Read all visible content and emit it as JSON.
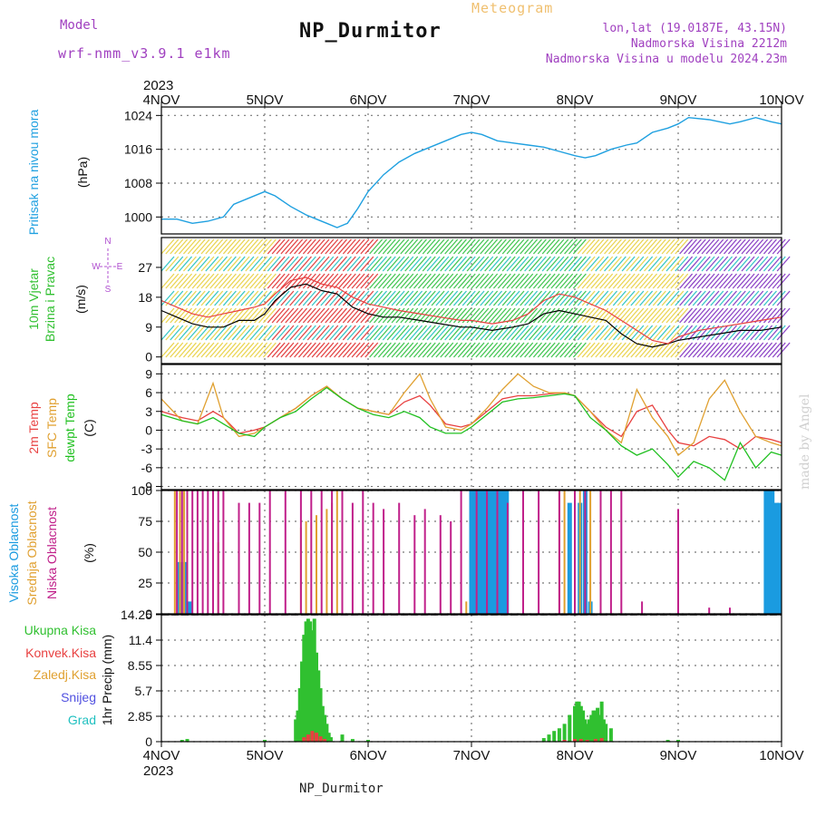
{
  "header": {
    "station": "NP_Durmitor",
    "meteogram_label": "Meteogram",
    "model_label": "Model",
    "model_name": "wrf-nmm_v3.9.1 e1km",
    "lonlat": "lon,lat (19.0187E, 43.15N)",
    "altitude": "Nadmorska Visina 2212m",
    "model_altitude": "Nadmorska Visina u modelu 2024.23m",
    "year": "2023",
    "watermark": "made by Angel"
  },
  "time_axis": {
    "labels": [
      "4NOV",
      "5NOV",
      "6NOV",
      "7NOV",
      "8NOV",
      "9NOV",
      "10NOV"
    ],
    "year": "2023",
    "footer": "NP_Durmitor"
  },
  "colors": {
    "pressure": "#1fa0e0",
    "temp2m": "#e84040",
    "sfctemp": "#e0a030",
    "dewpt": "#20c020",
    "high_cloud": "#1a9be0",
    "mid_cloud": "#e0a030",
    "low_cloud": "#c0208a",
    "rain_total": "#30c030",
    "rain_conv": "#e84040",
    "snow": "#5050e0",
    "hail": "#20c0c0",
    "wind_speed": "#000000",
    "wind_gust": "#e84040",
    "wind_dir_text": "#b050d0"
  },
  "chart_data": [
    {
      "type": "line",
      "panel": "pressure",
      "ylabel_main": "Pritisak na nivou mora",
      "ylabel_unit": "(hPa)",
      "ylim": [
        996,
        1026
      ],
      "yticks": [
        1000,
        1008,
        1016,
        1024
      ],
      "grid": true,
      "x": [
        0,
        0.15,
        0.3,
        0.45,
        0.6,
        0.7,
        0.85,
        1.0,
        1.1,
        1.25,
        1.4,
        1.5,
        1.6,
        1.7,
        1.8,
        1.9,
        2.0,
        2.15,
        2.3,
        2.45,
        2.6,
        2.75,
        2.9,
        3.0,
        3.1,
        3.25,
        3.4,
        3.55,
        3.7,
        3.85,
        4.0,
        4.1,
        4.2,
        4.35,
        4.5,
        4.6,
        4.75,
        4.9,
        5.0,
        5.1,
        5.3,
        5.5,
        5.6,
        5.75,
        5.9,
        6.0
      ],
      "series": [
        {
          "values": [
            999.5,
            999.5,
            998.5,
            999.0,
            1000.0,
            1003.0,
            1004.5,
            1006.0,
            1005.0,
            1002.5,
            1000.5,
            999.5,
            998.5,
            997.5,
            998.5,
            1002.0,
            1006.0,
            1010.0,
            1013.0,
            1015.0,
            1016.5,
            1018.0,
            1019.5,
            1020.0,
            1019.5,
            1018.0,
            1017.5,
            1017.0,
            1016.5,
            1015.5,
            1014.5,
            1014.0,
            1014.5,
            1016.0,
            1017.0,
            1017.5,
            1020.0,
            1021.0,
            1022.0,
            1023.5,
            1023.0,
            1022.0,
            1022.5,
            1023.5,
            1022.5,
            1022.0
          ]
        }
      ]
    },
    {
      "type": "line",
      "panel": "wind",
      "ylabel_main": "10m Vjetar",
      "ylabel_sub": "Brzina i Pravac",
      "ylabel_unit": "(m/s)",
      "ylim": [
        -2,
        36
      ],
      "yticks": [
        0,
        9,
        18,
        27
      ],
      "grid": false,
      "compass": [
        "N",
        "E",
        "S",
        "W"
      ],
      "x": [
        0,
        0.15,
        0.3,
        0.45,
        0.6,
        0.75,
        0.9,
        1.0,
        1.1,
        1.25,
        1.4,
        1.55,
        1.7,
        1.85,
        2.0,
        2.15,
        2.3,
        2.5,
        2.7,
        2.9,
        3.0,
        3.2,
        3.4,
        3.55,
        3.7,
        3.85,
        4.0,
        4.15,
        4.3,
        4.45,
        4.6,
        4.75,
        4.9,
        5.0,
        5.2,
        5.4,
        5.6,
        5.8,
        6.0
      ],
      "series": [
        {
          "name": "speed",
          "values": [
            14,
            12,
            10,
            9,
            9,
            11,
            11,
            13,
            17,
            21,
            22,
            20,
            19,
            15,
            13,
            12,
            12,
            11,
            10,
            9,
            9,
            8,
            9,
            10,
            13,
            14,
            13,
            12,
            11,
            7,
            4,
            3,
            4,
            5,
            6,
            7,
            8,
            8,
            9
          ]
        },
        {
          "name": "gust",
          "values": [
            17,
            15,
            13,
            12,
            13,
            14,
            15,
            16,
            19,
            23,
            24,
            22,
            21,
            18,
            16,
            15,
            14,
            13,
            12,
            11,
            11,
            10,
            11,
            13,
            17,
            19,
            18,
            16,
            14,
            11,
            8,
            5,
            4,
            6,
            8,
            9,
            10,
            11,
            12
          ]
        }
      ],
      "barb_colors_by_day": [
        "#e8d040",
        "#e03030",
        "#30c040",
        "#30c040",
        "#e8d040",
        "#8030c0"
      ]
    },
    {
      "type": "line",
      "panel": "temperature",
      "ylabel_main": "2m Temp",
      "ylabel_sub": "SFC Temp",
      "ylabel_sub2": "dewpt Temp",
      "ylabel_unit": "(C)",
      "ylim": [
        -9.5,
        10.5
      ],
      "yticks": [
        -9,
        -6,
        -3,
        0,
        3,
        6,
        9
      ],
      "grid": true,
      "x": [
        0,
        0.2,
        0.35,
        0.5,
        0.6,
        0.75,
        0.9,
        1.0,
        1.15,
        1.3,
        1.45,
        1.6,
        1.75,
        1.9,
        2.05,
        2.2,
        2.35,
        2.5,
        2.6,
        2.75,
        2.9,
        3.0,
        3.15,
        3.3,
        3.45,
        3.6,
        3.75,
        3.9,
        4.0,
        4.15,
        4.3,
        4.45,
        4.6,
        4.75,
        4.9,
        5.0,
        5.15,
        5.3,
        5.45,
        5.6,
        5.75,
        5.9,
        6.0
      ],
      "series": [
        {
          "name": "2m Temp",
          "values": [
            3,
            2,
            1.5,
            3,
            2,
            -0.5,
            0,
            0.5,
            2,
            3.5,
            5.5,
            7,
            5,
            3.5,
            3,
            2.5,
            4.5,
            5.5,
            4,
            1,
            0.5,
            1,
            3,
            5,
            5.5,
            5.5,
            5.8,
            6,
            5.5,
            3,
            0.5,
            -1,
            3,
            4,
            0,
            -2,
            -2.5,
            -1,
            -1.5,
            -3,
            -1,
            -1.5,
            -2
          ]
        },
        {
          "name": "SFC Temp",
          "values": [
            5,
            1.5,
            1,
            7.5,
            2,
            -1,
            -0.5,
            0.5,
            2,
            3.5,
            5.5,
            7,
            5,
            3.5,
            3,
            2.5,
            6,
            9,
            5,
            0.5,
            0,
            1,
            3.5,
            6.5,
            9,
            7,
            6,
            6,
            5.5,
            3,
            0,
            -2,
            6.5,
            2,
            -1,
            -4,
            -2,
            5,
            8,
            3,
            -1,
            -2,
            -2.5
          ]
        },
        {
          "name": "dewpt Temp",
          "values": [
            2.5,
            1.5,
            1,
            2,
            1,
            -0.5,
            -1,
            0.5,
            2,
            3,
            5,
            6.8,
            5,
            3.5,
            2.5,
            2,
            3,
            2,
            0.5,
            -0.5,
            -0.5,
            0.5,
            2.5,
            4.5,
            5,
            5.2,
            5.5,
            5.8,
            5.5,
            2,
            0,
            -2.5,
            -4,
            -3,
            -5.5,
            -7.5,
            -5,
            -6,
            -8,
            -2,
            -6,
            -3.5,
            -4
          ]
        }
      ]
    },
    {
      "type": "bar",
      "panel": "cloud",
      "ylabel_main": "Visoka Oblacnost",
      "ylabel_sub": "Srednja Oblacnost",
      "ylabel_sub2": "Niska Oblacnost",
      "ylabel_unit": "(%)",
      "ylim": [
        0,
        100
      ],
      "yticks": [
        0,
        25,
        50,
        75,
        100
      ],
      "grid": true,
      "low": {
        "x": [
          0.15,
          0.2,
          0.25,
          0.3,
          0.35,
          0.4,
          0.45,
          0.5,
          0.55,
          0.6,
          0.75,
          0.85,
          0.95,
          1.05,
          1.2,
          1.35,
          1.45,
          1.55,
          1.65,
          1.75,
          1.85,
          1.95,
          2.05,
          2.15,
          2.3,
          2.45,
          2.55,
          2.7,
          2.8,
          2.9,
          3.05,
          3.15,
          3.25,
          3.35,
          3.5,
          3.65,
          3.85,
          4.0,
          4.1,
          4.25,
          4.35,
          4.45,
          4.65,
          5.0,
          5.3,
          5.5
        ],
        "values": [
          100,
          100,
          100,
          100,
          100,
          100,
          100,
          100,
          100,
          100,
          90,
          90,
          90,
          100,
          100,
          100,
          100,
          100,
          100,
          100,
          90,
          100,
          90,
          85,
          90,
          80,
          85,
          80,
          75,
          100,
          100,
          100,
          100,
          90,
          100,
          100,
          100,
          100,
          100,
          100,
          100,
          100,
          10,
          85,
          5,
          5
        ]
      },
      "mid": {
        "x": [
          0.13,
          0.18,
          0.22,
          0.5,
          0.55,
          1.35,
          1.4,
          1.5,
          1.6,
          1.65,
          1.7,
          2.95,
          3.85,
          3.9,
          4.0,
          4.05,
          4.15,
          4.25
        ],
        "values": [
          100,
          100,
          100,
          62,
          58,
          70,
          75,
          80,
          85,
          90,
          100,
          10,
          100,
          100,
          100,
          100,
          100,
          90
        ]
      },
      "high": {
        "x": [
          0.18,
          0.23,
          0.28,
          3.0,
          3.03,
          3.06,
          3.09,
          3.12,
          3.15,
          3.18,
          3.21,
          3.24,
          3.27,
          3.3,
          3.34,
          3.95,
          4.05,
          4.1,
          4.15,
          5.85,
          5.88,
          5.91,
          5.95,
          5.98
        ],
        "values": [
          42,
          42,
          10,
          100,
          100,
          100,
          100,
          100,
          100,
          100,
          100,
          100,
          100,
          100,
          100,
          90,
          90,
          100,
          10,
          100,
          100,
          100,
          90,
          90
        ]
      }
    },
    {
      "type": "bar",
      "panel": "precipitation",
      "ylabel_main": "1hr Precip",
      "ylabel_unit": "(mm)",
      "legend": [
        "Ukupna Kisa",
        "Konvek.Kisa",
        "Zaledj.Kisa",
        "Snijeg",
        "Grad"
      ],
      "ylim": [
        0,
        14.25
      ],
      "yticks": [
        0,
        2.85,
        5.7,
        8.55,
        11.4,
        14.25
      ],
      "grid": true,
      "total": {
        "x": [
          0.2,
          0.25,
          1.0,
          1.3,
          1.32,
          1.34,
          1.36,
          1.38,
          1.4,
          1.42,
          1.44,
          1.46,
          1.48,
          1.5,
          1.52,
          1.54,
          1.56,
          1.58,
          1.6,
          1.62,
          1.64,
          1.75,
          1.85,
          2.0,
          3.7,
          3.75,
          3.8,
          3.85,
          3.9,
          3.95,
          4.0,
          4.02,
          4.04,
          4.06,
          4.08,
          4.1,
          4.12,
          4.14,
          4.16,
          4.18,
          4.2,
          4.22,
          4.24,
          4.26,
          4.28,
          4.3,
          4.35,
          4.9,
          5.0
        ],
        "values": [
          0.2,
          0.3,
          0.2,
          2.5,
          3.5,
          6,
          9,
          12,
          13.5,
          13.8,
          13.5,
          12.5,
          13.8,
          10,
          8,
          6,
          4,
          3,
          2,
          1,
          0.5,
          0.8,
          0.3,
          0.2,
          0.4,
          0.8,
          1.2,
          1.5,
          2,
          3,
          4,
          4.5,
          4.5,
          4,
          3.5,
          2.5,
          2,
          2.5,
          3,
          3.5,
          3.5,
          3.8,
          3,
          4.5,
          2.5,
          2,
          1.5,
          0.2,
          0.2
        ]
      },
      "convective": {
        "x": [
          1.38,
          1.42,
          1.46,
          1.5,
          1.54,
          1.58,
          3.9,
          4.0,
          4.06,
          4.12,
          4.2,
          4.26
        ],
        "values": [
          0.5,
          0.8,
          1.2,
          1,
          0.6,
          0.3,
          0.2,
          0.3,
          0.3,
          0.2,
          0.3,
          0.4
        ]
      }
    }
  ]
}
